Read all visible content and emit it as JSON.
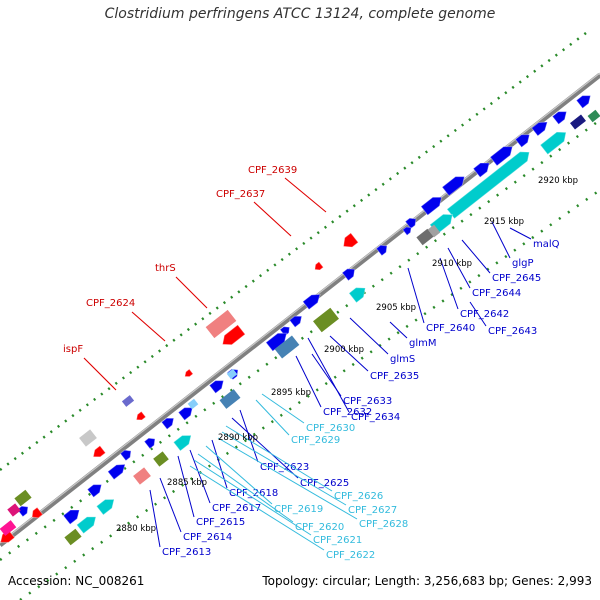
{
  "title": "Clostridium perfringens ATCC 13124, complete genome",
  "footer": {
    "accession": "Accession: NC_008261",
    "summary": "Topology: circular; Length: 3,256,683 bp; Genes: 2,993"
  },
  "colors": {
    "backbone": "#808080",
    "forward_gene": "#0000ee",
    "forward_alt": "#00cccc",
    "reverse_gene": "#ff0000",
    "reverse_alt": "#f08080",
    "highlight_label": "#cc0000",
    "label_blue": "#0000cc",
    "label_cyan": "#33bbdd",
    "gc_dots": "#2a8a2a"
  },
  "ticks": [
    "2880 kbp",
    "2885 kbp",
    "2890 kbp",
    "2895 kbp",
    "2900 kbp",
    "2905 kbp",
    "2910 kbp",
    "2915 kbp",
    "2920 kbp"
  ],
  "labels_reverse": [
    "CPF_2639",
    "CPF_2637",
    "thrS",
    "CPF_2624",
    "ispF"
  ],
  "labels_forward": [
    "malQ",
    "glgP",
    "CPF_2645",
    "CPF_2644",
    "CPF_2642",
    "CPF_2643",
    "CPF_2640",
    "glmM",
    "glmS",
    "CPF_2635",
    "CPF_2633",
    "CPF_2632",
    "CPF_2634",
    "CPF_2630",
    "CPF_2629",
    "CPF_2623",
    "CPF_2625",
    "CPF_2626",
    "CPF_2627",
    "CPF_2628",
    "CPF_2618",
    "CPF_2619",
    "CPF_2617",
    "CPF_2615",
    "CPF_2620",
    "CPF_2621",
    "CPF_2622",
    "CPF_2614",
    "CPF_2613"
  ]
}
